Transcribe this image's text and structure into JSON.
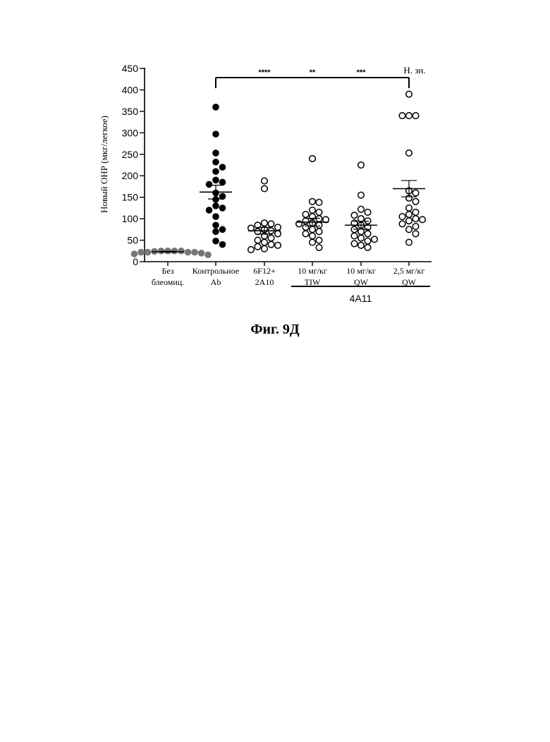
{
  "figure_caption": "Фиг. 9Д",
  "chart_data": {
    "type": "scatter",
    "ylabel": "Новый ОНР (мкг/легкое)",
    "ylim": [
      0,
      450
    ],
    "yticks": [
      0,
      50,
      100,
      150,
      200,
      250,
      300,
      350,
      400,
      450
    ],
    "grid": false,
    "categories": [
      {
        "lines": [
          "Без",
          "блеомиц."
        ],
        "marker": "filled-gray"
      },
      {
        "lines": [
          "Контрольное",
          "Ab"
        ],
        "marker": "filled-black"
      },
      {
        "lines": [
          "6F12+",
          "2A10"
        ],
        "marker": "open"
      },
      {
        "lines": [
          "10 мг/кг",
          "TIW"
        ],
        "marker": "open"
      },
      {
        "lines": [
          "10 мг/кг",
          "QW"
        ],
        "marker": "open"
      },
      {
        "lines": [
          "2,5 мг/кг",
          "QW"
        ],
        "marker": "open"
      }
    ],
    "series": [
      {
        "values": [
          25,
          25,
          25,
          25,
          24,
          22,
          22,
          22,
          22,
          20,
          18,
          16
        ],
        "mean": 23,
        "sem": 1
      },
      {
        "values": [
          360,
          297,
          253,
          232,
          220,
          210,
          190,
          185,
          180,
          160,
          152,
          145,
          130,
          125,
          120,
          105,
          85,
          75,
          70,
          48,
          40
        ],
        "mean": 162,
        "sem": 16
      },
      {
        "values": [
          188,
          170,
          90,
          88,
          85,
          80,
          78,
          75,
          72,
          70,
          65,
          60,
          55,
          50,
          45,
          40,
          38,
          35,
          30,
          28
        ],
        "mean": 72,
        "sem": 8
      },
      {
        "values": [
          240,
          140,
          138,
          120,
          115,
          110,
          105,
          100,
          98,
          95,
          90,
          88,
          85,
          80,
          75,
          70,
          65,
          60,
          50,
          45,
          33
        ],
        "mean": 92,
        "sem": 9
      },
      {
        "values": [
          225,
          155,
          122,
          115,
          108,
          100,
          95,
          90,
          85,
          80,
          75,
          70,
          65,
          60,
          55,
          52,
          48,
          42,
          38,
          33
        ],
        "mean": 85,
        "sem": 9
      },
      {
        "values": [
          390,
          340,
          340,
          340,
          253,
          165,
          160,
          148,
          140,
          125,
          115,
          110,
          105,
          100,
          98,
          95,
          88,
          82,
          75,
          65,
          45
        ],
        "mean": 170,
        "sem": 19
      }
    ],
    "comparison": {
      "from_category": 1,
      "to_categories": [
        2,
        3,
        4,
        5
      ],
      "labels": [
        "****",
        "**",
        "***",
        "Н. зн."
      ]
    },
    "group_bracket": {
      "categories": [
        3,
        4,
        5
      ],
      "label": "4A11"
    }
  }
}
